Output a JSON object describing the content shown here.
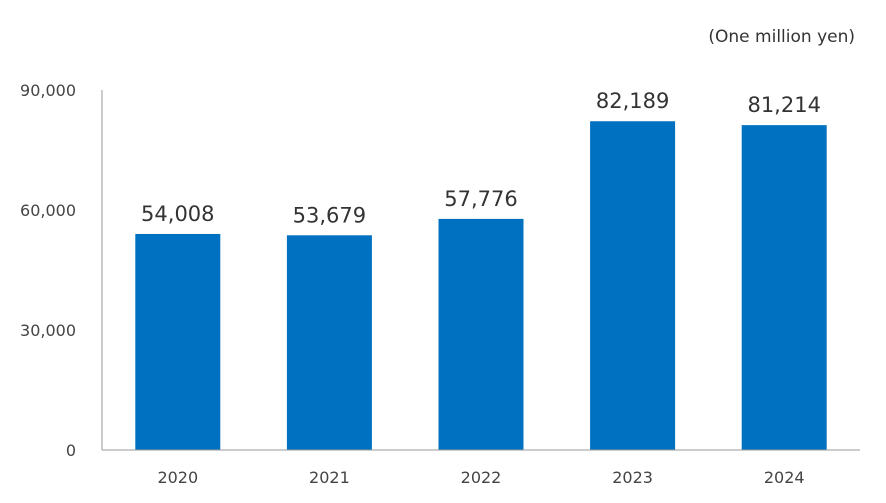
{
  "chart_data": {
    "type": "bar",
    "unit_label": "(One million yen)",
    "categories": [
      "2020",
      "2021",
      "2022",
      "2023",
      "2024"
    ],
    "values": [
      54008,
      53679,
      57776,
      82189,
      81214
    ],
    "value_labels": [
      "54,008",
      "53,679",
      "57,776",
      "82,189",
      "81,214"
    ],
    "y_ticks": [
      0,
      30000,
      60000,
      90000
    ],
    "y_tick_labels": [
      "0",
      "30,000",
      "60,000",
      "90,000"
    ],
    "ylim": [
      0,
      90000
    ],
    "grid": false,
    "legend": "none",
    "bar_color": "#0070c0"
  }
}
